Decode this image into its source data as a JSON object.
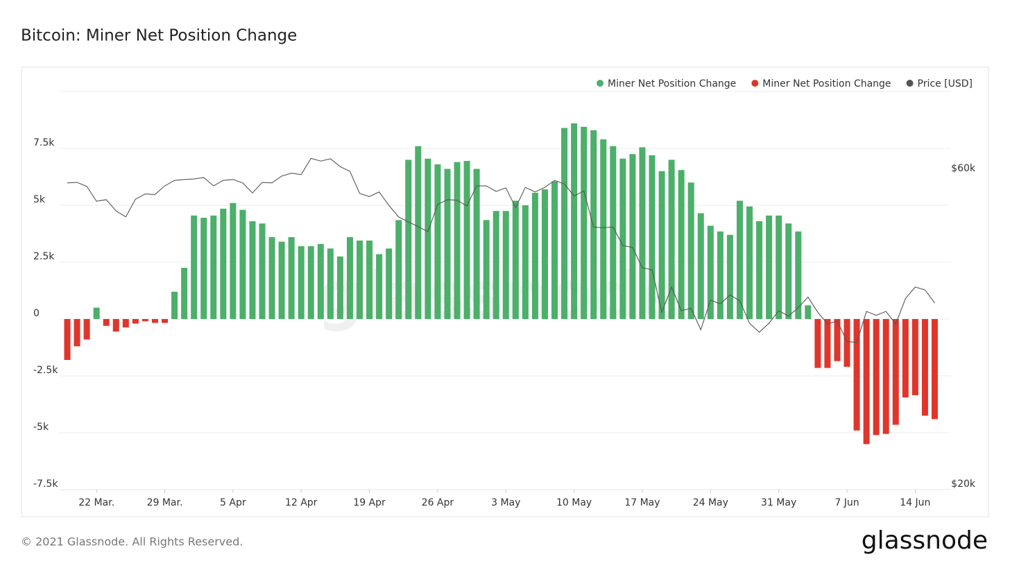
{
  "chart_data": {
    "type": "bar",
    "title": "Bitcoin: Miner Net Position Change",
    "watermark": "glassnode",
    "categories": [
      "19 Mar.",
      "20 Mar.",
      "21 Mar.",
      "22 Mar.",
      "23 Mar.",
      "24 Mar.",
      "25 Mar.",
      "26 Mar.",
      "27 Mar.",
      "28 Mar.",
      "29 Mar.",
      "30 Mar.",
      "31 Mar.",
      "1 Apr",
      "2 Apr",
      "3 Apr",
      "4 Apr",
      "5 Apr",
      "6 Apr",
      "7 Apr",
      "8 Apr",
      "9 Apr",
      "10 Apr",
      "11 Apr",
      "12 Apr",
      "13 Apr",
      "14 Apr",
      "15 Apr",
      "16 Apr",
      "17 Apr",
      "18 Apr",
      "19 Apr",
      "20 Apr",
      "21 Apr",
      "22 Apr",
      "23 Apr",
      "24 Apr",
      "25 Apr",
      "26 Apr",
      "27 Apr",
      "28 Apr",
      "29 Apr",
      "30 Apr",
      "1 May",
      "2 May",
      "3 May",
      "4 May",
      "5 May",
      "6 May",
      "7 May",
      "8 May",
      "9 May",
      "10 May",
      "11 May",
      "12 May",
      "13 May",
      "14 May",
      "15 May",
      "16 May",
      "17 May",
      "18 May",
      "19 May",
      "20 May",
      "21 May",
      "22 May",
      "23 May",
      "24 May",
      "25 May",
      "26 May",
      "27 May",
      "28 May",
      "29 May",
      "30 May",
      "31 May",
      "1 Jun",
      "2 Jun",
      "3 Jun",
      "4 Jun",
      "5 Jun",
      "6 Jun",
      "7 Jun",
      "8 Jun",
      "9 Jun",
      "10 Jun",
      "11 Jun",
      "12 Jun",
      "13 Jun",
      "14 Jun",
      "15 Jun",
      "16 Jun"
    ],
    "xticks": [
      "22 Mar.",
      "29 Mar.",
      "5 Apr",
      "12 Apr",
      "19 Apr",
      "26 Apr",
      "3 May",
      "10 May",
      "17 May",
      "24 May",
      "31 May",
      "7 Jun",
      "14 Jun"
    ],
    "series": [
      {
        "name": "Miner Net Position Change",
        "color": "#4caf6a",
        "values": [
          null,
          null,
          null,
          500,
          null,
          null,
          null,
          null,
          null,
          null,
          null,
          1200,
          2250,
          4550,
          4450,
          4550,
          4850,
          5100,
          4800,
          4300,
          4200,
          3600,
          3400,
          3600,
          3200,
          3200,
          3300,
          3100,
          2750,
          3600,
          3450,
          3450,
          2850,
          3100,
          4350,
          7000,
          7600,
          7050,
          6800,
          6600,
          6900,
          6950,
          6600,
          4350,
          4750,
          4750,
          5200,
          5000,
          5550,
          5700,
          6050,
          8400,
          8600,
          8450,
          8300,
          7900,
          7600,
          7050,
          7250,
          7550,
          7200,
          6500,
          7000,
          6550,
          6000,
          4650,
          4100,
          3850,
          3700,
          5200,
          4950,
          4300,
          4550,
          4550,
          4200,
          3850,
          600,
          null,
          null,
          null,
          null,
          null,
          null,
          null,
          null,
          null,
          null,
          null,
          null,
          null
        ]
      },
      {
        "name": "Miner Net Position Change",
        "color": "#e0352b",
        "values": [
          -1800,
          -1200,
          -900,
          null,
          -300,
          -550,
          -370,
          -200,
          -100,
          -170,
          -170,
          null,
          null,
          null,
          null,
          null,
          null,
          null,
          null,
          null,
          null,
          null,
          null,
          null,
          null,
          null,
          null,
          null,
          null,
          null,
          null,
          null,
          null,
          null,
          null,
          null,
          null,
          null,
          null,
          null,
          null,
          null,
          null,
          null,
          null,
          null,
          null,
          null,
          null,
          null,
          null,
          null,
          null,
          null,
          null,
          null,
          null,
          null,
          null,
          null,
          null,
          null,
          null,
          null,
          null,
          null,
          null,
          null,
          null,
          null,
          null,
          null,
          null,
          null,
          null,
          null,
          null,
          -2150,
          -2150,
          -1850,
          -2100,
          -4900,
          -5500,
          -5100,
          -5050,
          -4650,
          -3450,
          -3350,
          -4250,
          -4400
        ]
      },
      {
        "name": "Price [USD]",
        "color": "#555555",
        "type": "line",
        "axis": "y2",
        "values": [
          58200,
          58300,
          57500,
          54600,
          54900,
          52800,
          51700,
          55000,
          56000,
          55900,
          57600,
          58700,
          58900,
          59000,
          59300,
          57600,
          58700,
          58900,
          58200,
          56200,
          58300,
          58200,
          59600,
          60200,
          59900,
          63400,
          62800,
          63300,
          61600,
          60600,
          56100,
          55500,
          56400,
          53800,
          51700,
          50800,
          50000,
          49100,
          54000,
          54900,
          54800,
          53700,
          57600,
          57600,
          56500,
          57200,
          53400,
          57300,
          56400,
          57300,
          58700,
          58000,
          55600,
          56600,
          49900,
          49800,
          49900,
          46800,
          46500,
          43300,
          43000,
          37100,
          40500,
          37300,
          37600,
          34900,
          38700,
          38200,
          39400,
          38600,
          35700,
          34600,
          35700,
          37300,
          36600,
          37700,
          39100,
          37100,
          35600,
          36000,
          33500,
          33400,
          37200,
          36700,
          37200,
          35600,
          38900,
          40500,
          40100,
          38300
        ]
      }
    ],
    "ylim": [
      -7500,
      10000
    ],
    "yticks": [
      {
        "value": -7500,
        "label": "-7.5k"
      },
      {
        "value": -5000,
        "label": "-5k"
      },
      {
        "value": -2500,
        "label": "-2.5k"
      },
      0,
      {
        "value": 2500,
        "label": "2.5k"
      },
      {
        "value": 5000,
        "label": "5k"
      },
      {
        "value": 7500,
        "label": "7.5k"
      }
    ],
    "y2lim": [
      20000,
      80000
    ],
    "y2ticks": [
      {
        "value": 20000,
        "label": "$20k"
      },
      {
        "value": 60000,
        "label": "$60k"
      }
    ],
    "y2log": true,
    "grid": true,
    "legend": "top-right"
  },
  "footer": {
    "copyright": "© 2021 Glassnode. All Rights Reserved.",
    "brand": "glassnode"
  }
}
